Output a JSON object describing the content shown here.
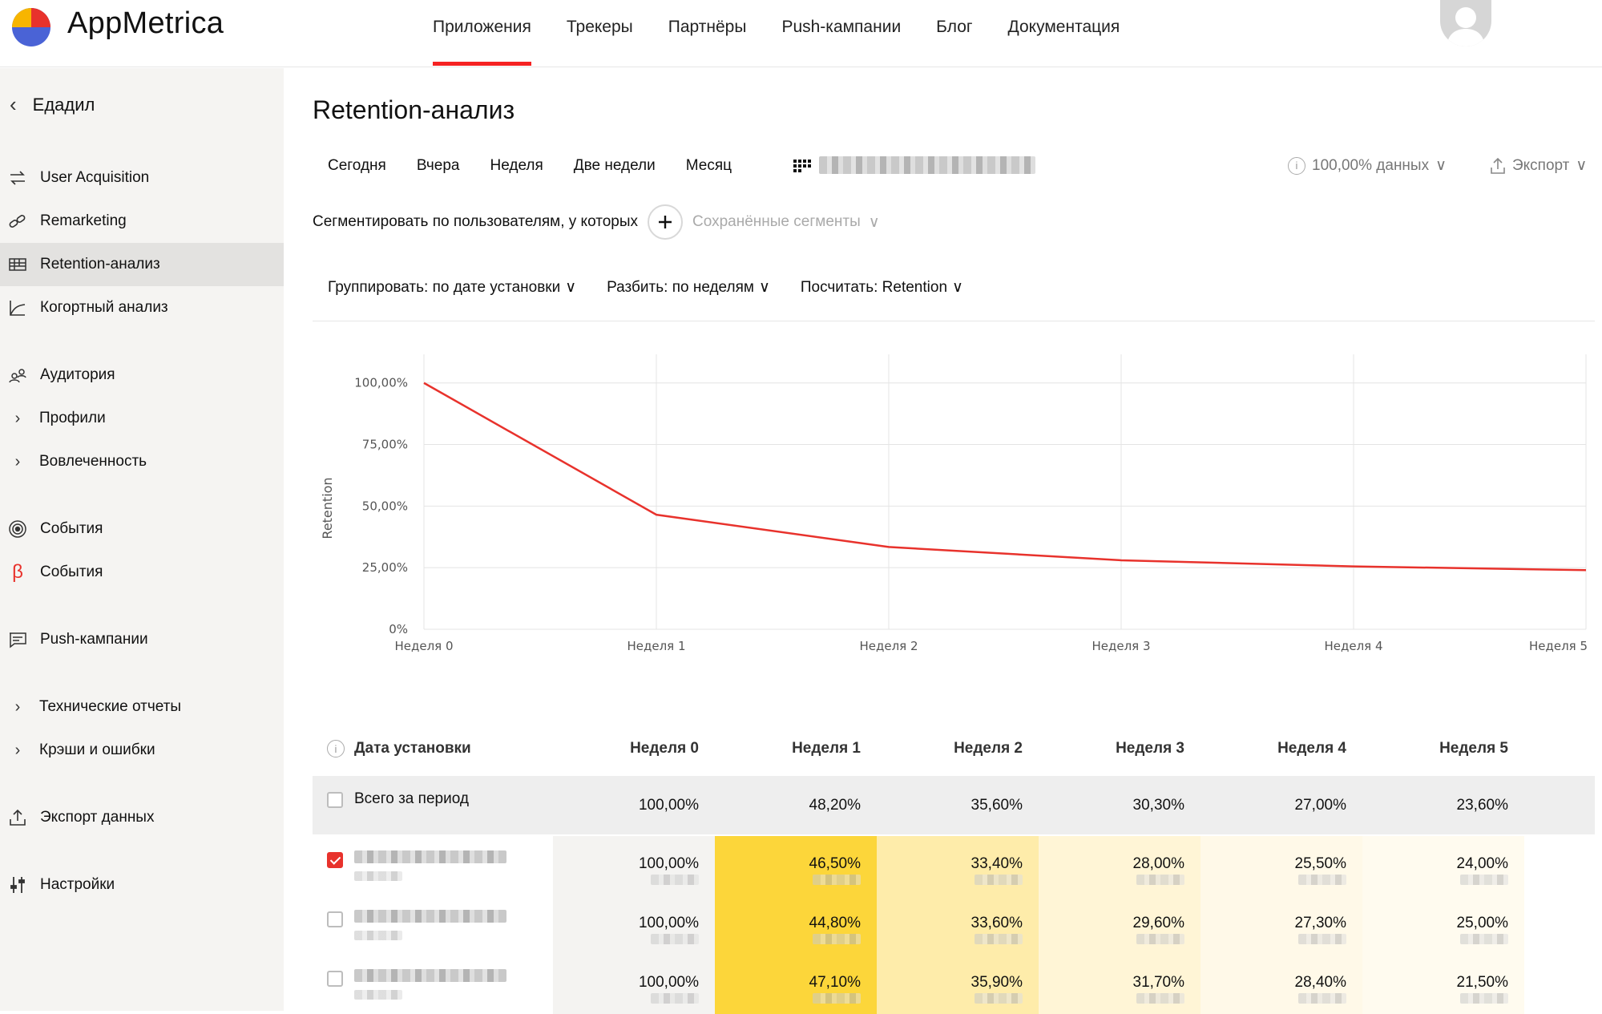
{
  "app": {
    "title": "AppMetrica"
  },
  "nav": {
    "items": [
      {
        "label": "Приложения",
        "active": true
      },
      {
        "label": "Трекеры",
        "active": false
      },
      {
        "label": "Партнёры",
        "active": false
      },
      {
        "label": "Push-кампании",
        "active": false
      },
      {
        "label": "Блог",
        "active": false
      },
      {
        "label": "Документация",
        "active": false
      }
    ]
  },
  "sidebar": {
    "back_label": "Едадил",
    "items": [
      {
        "label": "User Acquisition",
        "icon": "arrows-icon"
      },
      {
        "label": "Remarketing",
        "icon": "link-icon"
      },
      {
        "label": "Retention-анализ",
        "icon": "table-icon",
        "active": true
      },
      {
        "label": "Когортный анализ",
        "icon": "chart-icon"
      },
      {
        "label": "Аудитория",
        "icon": "audience-icon"
      },
      {
        "label": "Профили",
        "icon": "chevron-right-icon"
      },
      {
        "label": "Вовлеченность",
        "icon": "chevron-right-icon"
      },
      {
        "label": "События",
        "icon": "target-icon"
      },
      {
        "label": "События",
        "icon": "beta-icon"
      },
      {
        "label": "Push-кампании",
        "icon": "message-icon"
      },
      {
        "label": "Технические отчеты",
        "icon": "chevron-right-icon"
      },
      {
        "label": "Крэши и ошибки",
        "icon": "chevron-right-icon"
      },
      {
        "label": "Экспорт данных",
        "icon": "upload-icon"
      },
      {
        "label": "Настройки",
        "icon": "settings-icon"
      }
    ]
  },
  "main": {
    "title": "Retention-анализ",
    "periods": [
      "Сегодня",
      "Вчера",
      "Неделя",
      "Две недели",
      "Месяц"
    ],
    "data_pct": "100,00% данных",
    "export_label": "Экспорт",
    "segment_label": "Сегментировать по пользователям, у которых",
    "saved_segments": "Сохранённые сегменты",
    "group_by": "Группировать: по дате установки",
    "split_by": "Разбить: по неделям",
    "count": "Посчитать: Retention"
  },
  "chart_data": {
    "type": "line",
    "ylabel": "Retention",
    "categories": [
      "Неделя 0",
      "Неделя 1",
      "Неделя 2",
      "Неделя 3",
      "Неделя 4",
      "Неделя 5"
    ],
    "series": [
      {
        "values": [
          100,
          46.5,
          33.4,
          28,
          25.5,
          24
        ]
      }
    ],
    "yticks": [
      "0%",
      "25,00%",
      "50,00%",
      "75,00%",
      "100,00%"
    ],
    "ylim": [
      0,
      110
    ],
    "grid": true,
    "color": "#e8322c"
  },
  "table": {
    "first_header": "Дата установки",
    "headers": [
      "Неделя 0",
      "Неделя 1",
      "Неделя 2",
      "Неделя 3",
      "Неделя 4",
      "Неделя 5"
    ],
    "total": {
      "label": "Всего за период",
      "values": [
        "100,00%",
        "48,20%",
        "35,60%",
        "30,30%",
        "27,00%",
        "23,60%"
      ]
    },
    "rows": [
      {
        "checked": true,
        "values": [
          "100,00%",
          "46,50%",
          "33,40%",
          "28,00%",
          "25,50%",
          "24,00%"
        ]
      },
      {
        "checked": false,
        "values": [
          "100,00%",
          "44,80%",
          "33,60%",
          "29,60%",
          "27,30%",
          "25,00%"
        ]
      },
      {
        "checked": false,
        "values": [
          "100,00%",
          "47,10%",
          "35,90%",
          "31,70%",
          "28,40%",
          "21,50%"
        ]
      }
    ],
    "heat_colors": [
      "#f4f3f1",
      "#fcd63a",
      "#feecaa",
      "#fff5d6",
      "#fff9e8",
      "#fffbef"
    ]
  }
}
